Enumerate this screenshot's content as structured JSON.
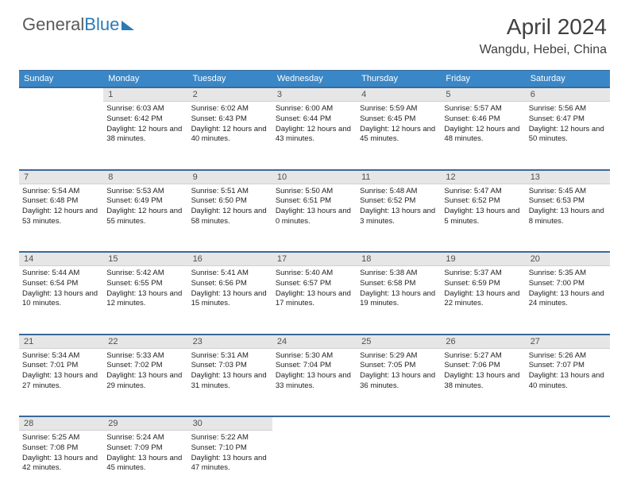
{
  "logo": {
    "part1": "General",
    "part2": "Blue"
  },
  "title": "April 2024",
  "location": "Wangdu, Hebei, China",
  "weekdays": [
    "Sunday",
    "Monday",
    "Tuesday",
    "Wednesday",
    "Thursday",
    "Friday",
    "Saturday"
  ],
  "colors": {
    "header_bg": "#3a87c7",
    "header_border": "#3a6a9a",
    "daynum_bg": "#e6e6e6",
    "logo_blue": "#2a7ab8",
    "text": "#222222"
  },
  "fonts": {
    "title_size_pt": 21,
    "location_size_pt": 12,
    "weekday_size_pt": 8,
    "body_size_pt": 7
  },
  "start_offset": 1,
  "days": [
    {
      "n": 1,
      "sr": "6:03 AM",
      "ss": "6:42 PM",
      "dl": "12 hours and 38 minutes."
    },
    {
      "n": 2,
      "sr": "6:02 AM",
      "ss": "6:43 PM",
      "dl": "12 hours and 40 minutes."
    },
    {
      "n": 3,
      "sr": "6:00 AM",
      "ss": "6:44 PM",
      "dl": "12 hours and 43 minutes."
    },
    {
      "n": 4,
      "sr": "5:59 AM",
      "ss": "6:45 PM",
      "dl": "12 hours and 45 minutes."
    },
    {
      "n": 5,
      "sr": "5:57 AM",
      "ss": "6:46 PM",
      "dl": "12 hours and 48 minutes."
    },
    {
      "n": 6,
      "sr": "5:56 AM",
      "ss": "6:47 PM",
      "dl": "12 hours and 50 minutes."
    },
    {
      "n": 7,
      "sr": "5:54 AM",
      "ss": "6:48 PM",
      "dl": "12 hours and 53 minutes."
    },
    {
      "n": 8,
      "sr": "5:53 AM",
      "ss": "6:49 PM",
      "dl": "12 hours and 55 minutes."
    },
    {
      "n": 9,
      "sr": "5:51 AM",
      "ss": "6:50 PM",
      "dl": "12 hours and 58 minutes."
    },
    {
      "n": 10,
      "sr": "5:50 AM",
      "ss": "6:51 PM",
      "dl": "13 hours and 0 minutes."
    },
    {
      "n": 11,
      "sr": "5:48 AM",
      "ss": "6:52 PM",
      "dl": "13 hours and 3 minutes."
    },
    {
      "n": 12,
      "sr": "5:47 AM",
      "ss": "6:52 PM",
      "dl": "13 hours and 5 minutes."
    },
    {
      "n": 13,
      "sr": "5:45 AM",
      "ss": "6:53 PM",
      "dl": "13 hours and 8 minutes."
    },
    {
      "n": 14,
      "sr": "5:44 AM",
      "ss": "6:54 PM",
      "dl": "13 hours and 10 minutes."
    },
    {
      "n": 15,
      "sr": "5:42 AM",
      "ss": "6:55 PM",
      "dl": "13 hours and 12 minutes."
    },
    {
      "n": 16,
      "sr": "5:41 AM",
      "ss": "6:56 PM",
      "dl": "13 hours and 15 minutes."
    },
    {
      "n": 17,
      "sr": "5:40 AM",
      "ss": "6:57 PM",
      "dl": "13 hours and 17 minutes."
    },
    {
      "n": 18,
      "sr": "5:38 AM",
      "ss": "6:58 PM",
      "dl": "13 hours and 19 minutes."
    },
    {
      "n": 19,
      "sr": "5:37 AM",
      "ss": "6:59 PM",
      "dl": "13 hours and 22 minutes."
    },
    {
      "n": 20,
      "sr": "5:35 AM",
      "ss": "7:00 PM",
      "dl": "13 hours and 24 minutes."
    },
    {
      "n": 21,
      "sr": "5:34 AM",
      "ss": "7:01 PM",
      "dl": "13 hours and 27 minutes."
    },
    {
      "n": 22,
      "sr": "5:33 AM",
      "ss": "7:02 PM",
      "dl": "13 hours and 29 minutes."
    },
    {
      "n": 23,
      "sr": "5:31 AM",
      "ss": "7:03 PM",
      "dl": "13 hours and 31 minutes."
    },
    {
      "n": 24,
      "sr": "5:30 AM",
      "ss": "7:04 PM",
      "dl": "13 hours and 33 minutes."
    },
    {
      "n": 25,
      "sr": "5:29 AM",
      "ss": "7:05 PM",
      "dl": "13 hours and 36 minutes."
    },
    {
      "n": 26,
      "sr": "5:27 AM",
      "ss": "7:06 PM",
      "dl": "13 hours and 38 minutes."
    },
    {
      "n": 27,
      "sr": "5:26 AM",
      "ss": "7:07 PM",
      "dl": "13 hours and 40 minutes."
    },
    {
      "n": 28,
      "sr": "5:25 AM",
      "ss": "7:08 PM",
      "dl": "13 hours and 42 minutes."
    },
    {
      "n": 29,
      "sr": "5:24 AM",
      "ss": "7:09 PM",
      "dl": "13 hours and 45 minutes."
    },
    {
      "n": 30,
      "sr": "5:22 AM",
      "ss": "7:10 PM",
      "dl": "13 hours and 47 minutes."
    }
  ],
  "labels": {
    "sunrise": "Sunrise: ",
    "sunset": "Sunset: ",
    "daylight": "Daylight: "
  }
}
